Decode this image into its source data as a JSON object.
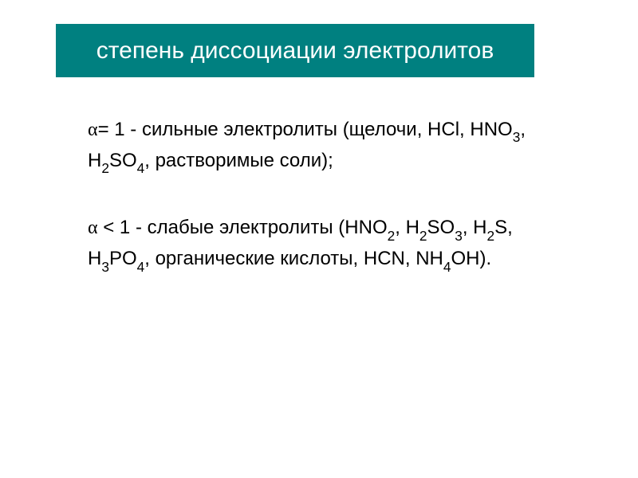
{
  "slide": {
    "background_color": "#ffffff",
    "title": {
      "text": "степень диссоциации электролитов",
      "background_color": "#008080",
      "text_color": "#ffffff",
      "fontsize": 30
    },
    "paragraphs": [
      {
        "alpha": "α",
        "relation": "= 1 - ",
        "lead": "сильные электролиты (щелочи, HCl, HNO",
        "sub1": "3",
        "mid1": ", H",
        "sub2": "2",
        "mid2": "SO",
        "sub3": "4",
        "tail": ", растворимые соли);"
      },
      {
        "alpha": "α",
        "relation": " < 1 - ",
        "lead": "слабые электролиты (HNO",
        "sub1": "2",
        "mid1": ", H",
        "sub2": "2",
        "mid2": "SO",
        "sub3": "3",
        "mid3": ", H",
        "sub4": "2",
        "mid4": "S, H",
        "sub5": "3",
        "mid5": "PO",
        "sub6": "4",
        "mid6": ", органические кислоты, HCN, NH",
        "sub7": "4",
        "tail": "OH)."
      }
    ],
    "body_fontsize": 24,
    "body_text_color": "#000000"
  }
}
